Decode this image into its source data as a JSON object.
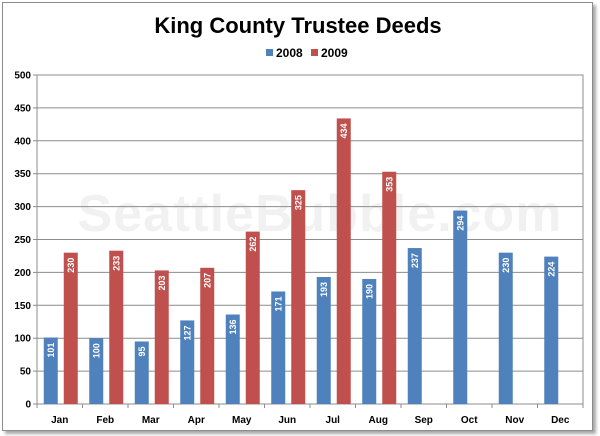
{
  "chart_data": {
    "type": "bar",
    "title": "King County Trustee Deeds",
    "watermark": "SeattleBubble.com",
    "categories": [
      "Jan",
      "Feb",
      "Mar",
      "Apr",
      "May",
      "Jun",
      "Jul",
      "Aug",
      "Sep",
      "Oct",
      "Nov",
      "Dec"
    ],
    "series": [
      {
        "name": "2008",
        "color": "#4f81bd",
        "values": [
          101,
          100,
          95,
          127,
          136,
          171,
          193,
          190,
          237,
          294,
          230,
          224
        ]
      },
      {
        "name": "2009",
        "color": "#c0504d",
        "values": [
          230,
          233,
          203,
          207,
          262,
          325,
          434,
          353,
          null,
          null,
          null,
          null
        ]
      }
    ],
    "ylim": [
      0,
      500
    ],
    "yticks": [
      0,
      50,
      100,
      150,
      200,
      250,
      300,
      350,
      400,
      450,
      500
    ],
    "legend_position": "top",
    "grid": "horizontal"
  }
}
